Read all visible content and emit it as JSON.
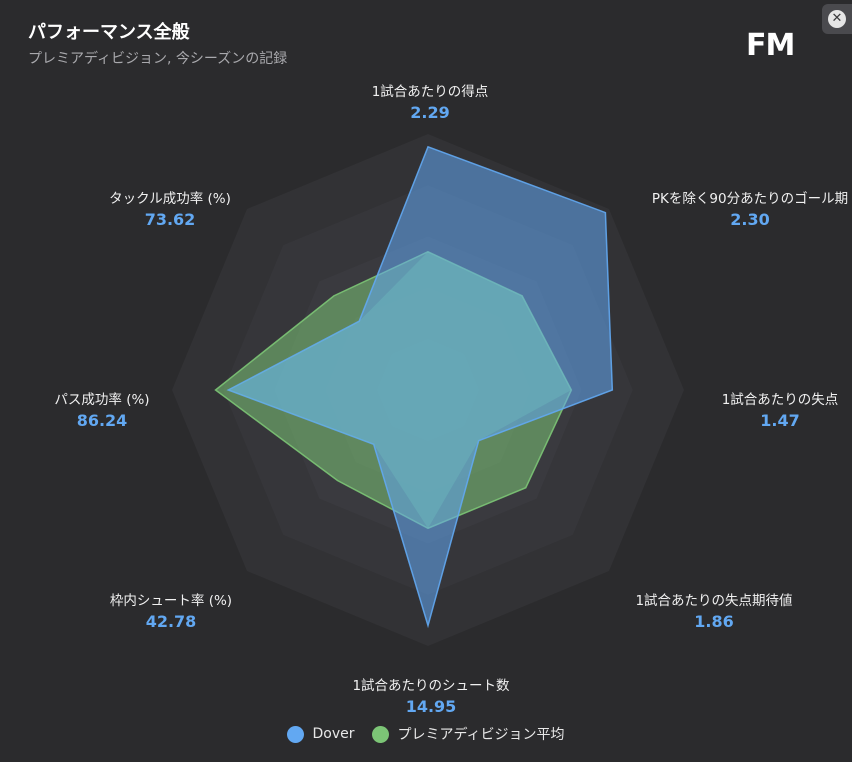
{
  "header": {
    "title": "パフォーマンス全般",
    "subtitle": "プレミアディビジョン, 今シーズンの記録",
    "logo": "FM",
    "close_icon": "close-circle-icon"
  },
  "colors": {
    "dover": "#62a8f2",
    "league": "#7cc576",
    "ring_outer": "#333336",
    "ring_inner": "#3d3d42"
  },
  "chart_data": {
    "type": "radar",
    "title": "パフォーマンス全般",
    "subtitle": "プレミアディビジョン, 今シーズンの記録",
    "axes": [
      {
        "label": "1試合あたりの得点",
        "value": "2.29"
      },
      {
        "label": "PKを除く90分あたりのゴール期",
        "value": "2.30"
      },
      {
        "label": "1試合あたりの失点",
        "value": "1.47"
      },
      {
        "label": "1試合あたりの失点期待値",
        "value": "1.86"
      },
      {
        "label": "1試合あたりのシュート数",
        "value": "14.95"
      },
      {
        "label": "枠内シュート率 (%)",
        "value": "42.78"
      },
      {
        "label": "パス成功率 (%)",
        "value": "86.24"
      },
      {
        "label": "タックル成功率 (%)",
        "value": "73.62"
      }
    ],
    "series": [
      {
        "name": "Dover",
        "scores": [
          0.95,
          0.98,
          0.72,
          0.28,
          0.92,
          0.3,
          0.78,
          0.38
        ]
      },
      {
        "name": "プレミアディビジョン平均",
        "scores": [
          0.54,
          0.52,
          0.56,
          0.54,
          0.54,
          0.5,
          0.83,
          0.52
        ]
      }
    ],
    "rings": 5,
    "grid": true,
    "legend_position": "bottom-center"
  },
  "legend": [
    {
      "name": "Dover"
    },
    {
      "name": "プレミアディビジョン平均"
    }
  ]
}
